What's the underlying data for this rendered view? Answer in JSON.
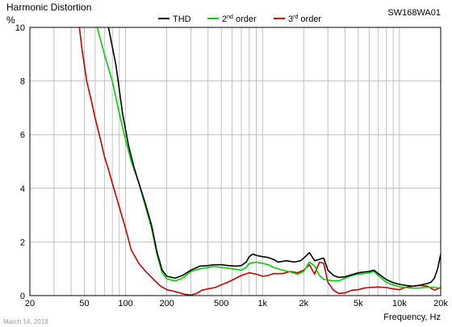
{
  "chart_data": {
    "type": "line",
    "title": "Harmonic Distortion",
    "ylabel": "%",
    "xlabel": "Frequency, Hz",
    "model": "SW168WA01",
    "date": "March 14, 2018",
    "xscale": "log",
    "xlim": [
      20,
      20000
    ],
    "ylim": [
      0,
      10
    ],
    "grid": true,
    "legend_position": "top",
    "x_ticks": [
      {
        "value": 20,
        "label": "20"
      },
      {
        "value": 50,
        "label": "50"
      },
      {
        "value": 100,
        "label": "100"
      },
      {
        "value": 200,
        "label": "200"
      },
      {
        "value": 500,
        "label": "500"
      },
      {
        "value": 1000,
        "label": "1k"
      },
      {
        "value": 2000,
        "label": "2k"
      },
      {
        "value": 5000,
        "label": "5k"
      },
      {
        "value": 10000,
        "label": "10k"
      },
      {
        "value": 20000,
        "label": "20k"
      }
    ],
    "y_ticks": [
      {
        "value": 0,
        "label": "0"
      },
      {
        "value": 2,
        "label": "2"
      },
      {
        "value": 4,
        "label": "4"
      },
      {
        "value": 6,
        "label": "6"
      },
      {
        "value": 8,
        "label": "8"
      },
      {
        "value": 10,
        "label": "10"
      }
    ],
    "series": [
      {
        "name": "THD",
        "legend_label": "THD",
        "legend_sup": "",
        "legend_suffix": "",
        "color": "#000000",
        "points": [
          [
            75,
            10
          ],
          [
            85,
            8.6
          ],
          [
            95,
            6.8
          ],
          [
            105,
            5.6
          ],
          [
            115,
            4.8
          ],
          [
            125,
            4.2
          ],
          [
            140,
            3.4
          ],
          [
            155,
            2.6
          ],
          [
            170,
            1.6
          ],
          [
            185,
            0.95
          ],
          [
            200,
            0.72
          ],
          [
            230,
            0.65
          ],
          [
            260,
            0.75
          ],
          [
            300,
            0.95
          ],
          [
            350,
            1.1
          ],
          [
            400,
            1.12
          ],
          [
            450,
            1.15
          ],
          [
            500,
            1.15
          ],
          [
            560,
            1.12
          ],
          [
            640,
            1.1
          ],
          [
            700,
            1.12
          ],
          [
            760,
            1.25
          ],
          [
            800,
            1.45
          ],
          [
            850,
            1.55
          ],
          [
            900,
            1.5
          ],
          [
            1000,
            1.45
          ],
          [
            1100,
            1.42
          ],
          [
            1200,
            1.35
          ],
          [
            1300,
            1.25
          ],
          [
            1500,
            1.3
          ],
          [
            1700,
            1.25
          ],
          [
            1900,
            1.3
          ],
          [
            2100,
            1.5
          ],
          [
            2200,
            1.6
          ],
          [
            2400,
            1.3
          ],
          [
            2600,
            1.35
          ],
          [
            2800,
            1.4
          ],
          [
            3000,
            0.95
          ],
          [
            3300,
            0.75
          ],
          [
            3600,
            0.68
          ],
          [
            4000,
            0.7
          ],
          [
            4500,
            0.78
          ],
          [
            5000,
            0.85
          ],
          [
            5500,
            0.88
          ],
          [
            6000,
            0.9
          ],
          [
            6500,
            0.95
          ],
          [
            7000,
            0.82
          ],
          [
            8000,
            0.6
          ],
          [
            9000,
            0.48
          ],
          [
            10000,
            0.42
          ],
          [
            11000,
            0.38
          ],
          [
            12500,
            0.35
          ],
          [
            14000,
            0.38
          ],
          [
            15000,
            0.42
          ],
          [
            16000,
            0.45
          ],
          [
            17000,
            0.5
          ],
          [
            18000,
            0.65
          ],
          [
            19000,
            1.0
          ],
          [
            20000,
            1.55
          ]
        ]
      },
      {
        "name": "2nd order",
        "legend_label": "2",
        "legend_sup": "nd",
        "legend_suffix": " order",
        "color": "#00d200",
        "points": [
          [
            62,
            10
          ],
          [
            70,
            9.0
          ],
          [
            80,
            8.0
          ],
          [
            90,
            6.8
          ],
          [
            100,
            5.8
          ],
          [
            110,
            5.0
          ],
          [
            125,
            4.2
          ],
          [
            140,
            3.3
          ],
          [
            155,
            2.5
          ],
          [
            170,
            1.5
          ],
          [
            185,
            0.85
          ],
          [
            200,
            0.62
          ],
          [
            230,
            0.55
          ],
          [
            260,
            0.65
          ],
          [
            300,
            0.9
          ],
          [
            350,
            1.0
          ],
          [
            400,
            1.05
          ],
          [
            450,
            1.08
          ],
          [
            500,
            1.05
          ],
          [
            560,
            1.02
          ],
          [
            640,
            0.98
          ],
          [
            700,
            0.95
          ],
          [
            760,
            1.05
          ],
          [
            800,
            1.2
          ],
          [
            900,
            1.25
          ],
          [
            1000,
            1.2
          ],
          [
            1100,
            1.15
          ],
          [
            1200,
            1.05
          ],
          [
            1400,
            0.95
          ],
          [
            1600,
            0.88
          ],
          [
            1800,
            0.8
          ],
          [
            2000,
            0.9
          ],
          [
            2200,
            1.25
          ],
          [
            2400,
            1.1
          ],
          [
            2600,
            0.75
          ],
          [
            2800,
            0.6
          ],
          [
            3000,
            0.58
          ],
          [
            3300,
            0.55
          ],
          [
            3600,
            0.55
          ],
          [
            4000,
            0.65
          ],
          [
            4500,
            0.75
          ],
          [
            5000,
            0.8
          ],
          [
            5500,
            0.82
          ],
          [
            6000,
            0.85
          ],
          [
            6500,
            0.9
          ],
          [
            7000,
            0.75
          ],
          [
            8000,
            0.5
          ],
          [
            9000,
            0.4
          ],
          [
            10000,
            0.33
          ],
          [
            11000,
            0.3
          ],
          [
            12500,
            0.28
          ],
          [
            14000,
            0.28
          ],
          [
            15000,
            0.3
          ],
          [
            16000,
            0.32
          ],
          [
            18000,
            0.3
          ],
          [
            20000,
            0.28
          ]
        ]
      },
      {
        "name": "3rd order",
        "legend_label": "3",
        "legend_sup": "rd",
        "legend_suffix": " order",
        "color": "#c80000",
        "points": [
          [
            46,
            10
          ],
          [
            48,
            9.2
          ],
          [
            52,
            8.0
          ],
          [
            56,
            7.3
          ],
          [
            60,
            6.6
          ],
          [
            65,
            5.9
          ],
          [
            70,
            5.2
          ],
          [
            75,
            4.7
          ],
          [
            82,
            4.0
          ],
          [
            90,
            3.3
          ],
          [
            100,
            2.5
          ],
          [
            110,
            1.7
          ],
          [
            125,
            1.2
          ],
          [
            140,
            0.9
          ],
          [
            160,
            0.6
          ],
          [
            180,
            0.35
          ],
          [
            200,
            0.22
          ],
          [
            230,
            0.15
          ],
          [
            270,
            0.05
          ],
          [
            300,
            0.02
          ],
          [
            330,
            0.08
          ],
          [
            360,
            0.2
          ],
          [
            400,
            0.25
          ],
          [
            450,
            0.3
          ],
          [
            500,
            0.4
          ],
          [
            560,
            0.5
          ],
          [
            640,
            0.65
          ],
          [
            700,
            0.75
          ],
          [
            800,
            0.85
          ],
          [
            900,
            0.8
          ],
          [
            1000,
            0.72
          ],
          [
            1100,
            0.75
          ],
          [
            1200,
            0.82
          ],
          [
            1400,
            0.82
          ],
          [
            1600,
            0.9
          ],
          [
            1800,
            0.85
          ],
          [
            2000,
            0.95
          ],
          [
            2200,
            1.15
          ],
          [
            2400,
            0.8
          ],
          [
            2600,
            1.25
          ],
          [
            2800,
            1.2
          ],
          [
            3000,
            0.5
          ],
          [
            3300,
            0.2
          ],
          [
            3600,
            0.08
          ],
          [
            4000,
            0.1
          ],
          [
            4500,
            0.2
          ],
          [
            5000,
            0.22
          ],
          [
            5500,
            0.28
          ],
          [
            6000,
            0.3
          ],
          [
            7000,
            0.32
          ],
          [
            8000,
            0.3
          ],
          [
            9000,
            0.25
          ],
          [
            10000,
            0.22
          ],
          [
            11000,
            0.3
          ],
          [
            12500,
            0.35
          ],
          [
            14000,
            0.38
          ],
          [
            16000,
            0.35
          ],
          [
            18000,
            0.2
          ],
          [
            20000,
            0.3
          ]
        ]
      }
    ]
  }
}
